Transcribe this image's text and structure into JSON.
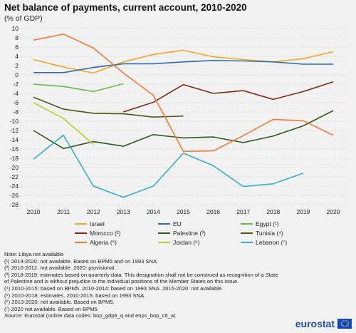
{
  "header": {
    "title": "Net balance of payments, current account, 2010-2020",
    "subtitle": "(% of GDP)"
  },
  "chart_data": {
    "type": "line",
    "x": [
      "2010",
      "2011",
      "2012",
      "2013",
      "2014",
      "2015",
      "2016",
      "2017",
      "2018",
      "2019",
      "2020"
    ],
    "ylim": [
      -28,
      10
    ],
    "yticks": [
      10,
      8,
      6,
      4,
      2,
      0,
      -2,
      -4,
      -6,
      -8,
      -10,
      -12,
      -14,
      -16,
      -18,
      -20,
      -22,
      -24,
      -26,
      -28
    ],
    "grid": true,
    "legend_position": "bottom",
    "series": [
      {
        "name": "Israel",
        "color": "#f5a623",
        "values": [
          3.3,
          1.7,
          0.4,
          2.8,
          4.4,
          5.3,
          3.9,
          3.3,
          2.8,
          3.5,
          5.0
        ]
      },
      {
        "name": "EU",
        "color": "#2e6cb5",
        "values": [
          0.5,
          0.5,
          1.6,
          2.4,
          2.4,
          2.8,
          3.1,
          3.0,
          2.8,
          2.3,
          2.3
        ]
      },
      {
        "name": "Egypt (¹)",
        "color": "#66bb44",
        "values": [
          -2.0,
          -2.5,
          -3.6,
          -1.9,
          null,
          null,
          null,
          null,
          null,
          null,
          null
        ]
      },
      {
        "name": "Morocco (²)",
        "color": "#7b2c12",
        "values": [
          null,
          null,
          null,
          -8.0,
          -5.9,
          -2.1,
          -4.0,
          -3.4,
          -5.3,
          -3.6,
          -1.5
        ]
      },
      {
        "name": "Palestine (³)",
        "color": "#2e5a1c",
        "values": [
          -12.0,
          -15.9,
          -14.4,
          -15.4,
          -12.9,
          -13.6,
          -13.4,
          -14.6,
          -13.2,
          -11.0,
          -7.7
        ]
      },
      {
        "name": "Tunisia (⁴)",
        "color": "#4a5a16",
        "values": [
          -4.8,
          -7.4,
          -8.3,
          -8.4,
          -9.1,
          -8.9,
          null,
          null,
          null,
          null,
          null
        ]
      },
      {
        "name": "Algeria (⁵)",
        "color": "#f07c3a",
        "values": [
          7.5,
          8.8,
          5.8,
          0.4,
          -4.4,
          -16.5,
          -16.4,
          -13.1,
          -9.6,
          -9.9,
          -13.0
        ]
      },
      {
        "name": "Jordan (⁶)",
        "color": "#b4d12e",
        "values": [
          -6.0,
          -9.4,
          -15.0,
          null,
          null,
          null,
          null,
          null,
          null,
          null,
          null
        ]
      },
      {
        "name": "Lebanon (⁷)",
        "color": "#35b0c0",
        "values": [
          -18.2,
          -13.0,
          -24.0,
          -26.4,
          -24.0,
          -16.9,
          -19.6,
          -24.1,
          -23.5,
          -21.2,
          null
        ]
      }
    ]
  },
  "notes": {
    "libya": "Note: Libya not available",
    "n1": "(¹) 2014-2020: not available. Based on BPM5 and on 1993 SNA.",
    "n2": "(²) 2010-2012: not available. 2020: provisional.",
    "n3a": "(³) 2018-2019: estimates based on quarterly data. This designation shall not be construed as recognition of a State",
    "n3b": "of Palestine and is without prejudice to the individual positions of the Member States on this issue.",
    "n4": "(⁴) 2010-2015: based on BPM5. 2010-2014: based on 1993 SNA. 2016-2020: not available.",
    "n5": "(⁵) 2010-2018: estimates. 2010-2015: based on 1993 SNA.",
    "n6": "(⁶) 2013-2020: not available. Based on BPM5.",
    "n7": "(⁷) 2020 not available. Based on BPM5.",
    "source_label": "Source:",
    "source_text": " Eurostat (online data codes: bop_gdp6_q and enps_bop_c6_a)"
  },
  "logo": {
    "text": "eurostat",
    "flag_color": "#0e47cb",
    "star_color": "#ffde00"
  }
}
